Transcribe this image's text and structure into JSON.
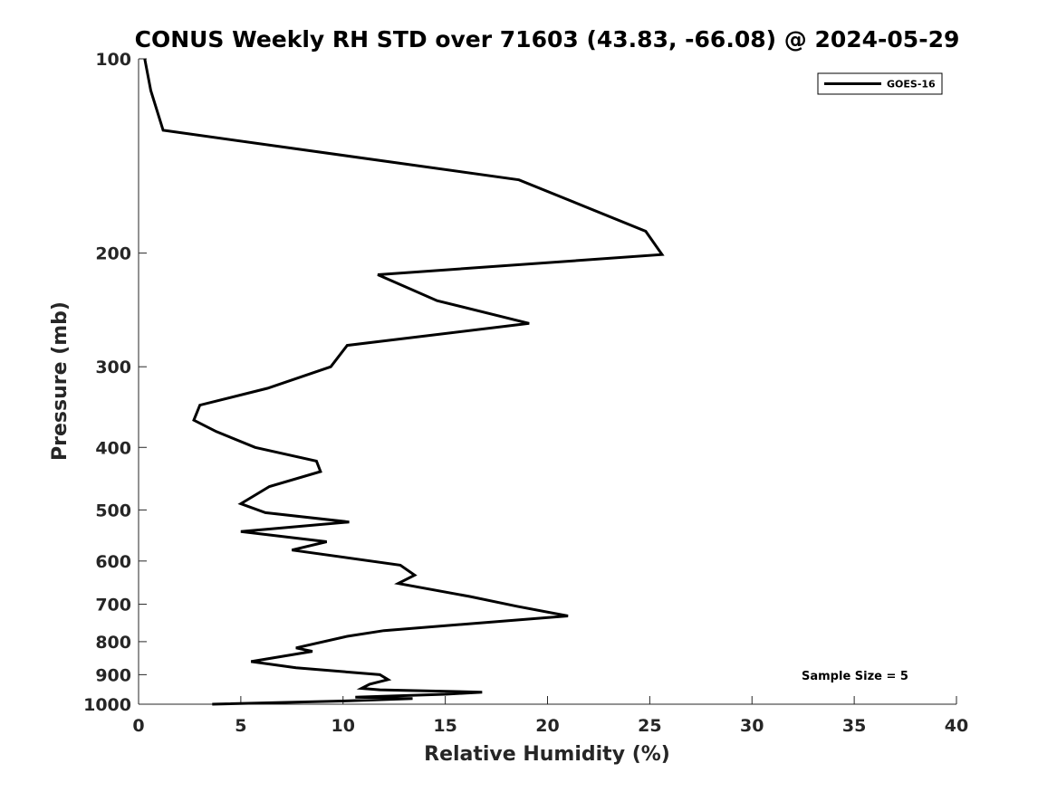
{
  "chart_data": {
    "type": "line",
    "title": "CONUS Weekly RH STD over 71603 (43.83, -66.08) @ 2024-05-29",
    "xlabel": "Relative Humidity (%)",
    "ylabel": "Pressure (mb)",
    "xlim": [
      0,
      40
    ],
    "ylim": [
      1000,
      100
    ],
    "y_scale": "log",
    "grid": false,
    "legend_position": "top-right",
    "x_ticks": [
      0,
      5,
      10,
      15,
      20,
      25,
      30,
      35,
      40
    ],
    "y_ticks": [
      100,
      200,
      300,
      400,
      500,
      600,
      700,
      800,
      900,
      1000
    ],
    "annotations": [
      {
        "text": "Sample Size = 5"
      }
    ],
    "series": [
      {
        "name": "GOES-16",
        "color": "#000000",
        "points": [
          [
            0.3,
            100
          ],
          [
            0.6,
            112
          ],
          [
            1.2,
            129
          ],
          [
            18.6,
            154
          ],
          [
            24.8,
            185
          ],
          [
            25.6,
            201
          ],
          [
            11.7,
            216
          ],
          [
            14.6,
            237
          ],
          [
            19.1,
            257
          ],
          [
            10.2,
            278
          ],
          [
            9.4,
            300
          ],
          [
            6.3,
            324
          ],
          [
            3.0,
            344
          ],
          [
            2.7,
            363
          ],
          [
            3.8,
            378
          ],
          [
            5.7,
            400
          ],
          [
            8.7,
            420
          ],
          [
            8.9,
            436
          ],
          [
            6.4,
            460
          ],
          [
            5.0,
            489
          ],
          [
            6.2,
            505
          ],
          [
            10.3,
            522
          ],
          [
            5.0,
            540
          ],
          [
            9.2,
            560
          ],
          [
            7.5,
            577
          ],
          [
            12.8,
            609
          ],
          [
            13.5,
            631
          ],
          [
            12.7,
            650
          ],
          [
            16.2,
            681
          ],
          [
            18.5,
            705
          ],
          [
            21.0,
            730
          ],
          [
            12.0,
            769
          ],
          [
            10.2,
            785
          ],
          [
            7.7,
            818
          ],
          [
            8.5,
            828
          ],
          [
            5.5,
            859
          ],
          [
            7.7,
            878
          ],
          [
            11.8,
            900
          ],
          [
            12.2,
            916
          ],
          [
            11.3,
            931
          ],
          [
            10.9,
            945
          ],
          [
            11.8,
            950
          ],
          [
            16.8,
            958
          ],
          [
            15.0,
            965
          ],
          [
            10.6,
            975
          ],
          [
            13.4,
            980
          ],
          [
            10.3,
            988
          ],
          [
            3.6,
            1000
          ]
        ]
      }
    ]
  }
}
